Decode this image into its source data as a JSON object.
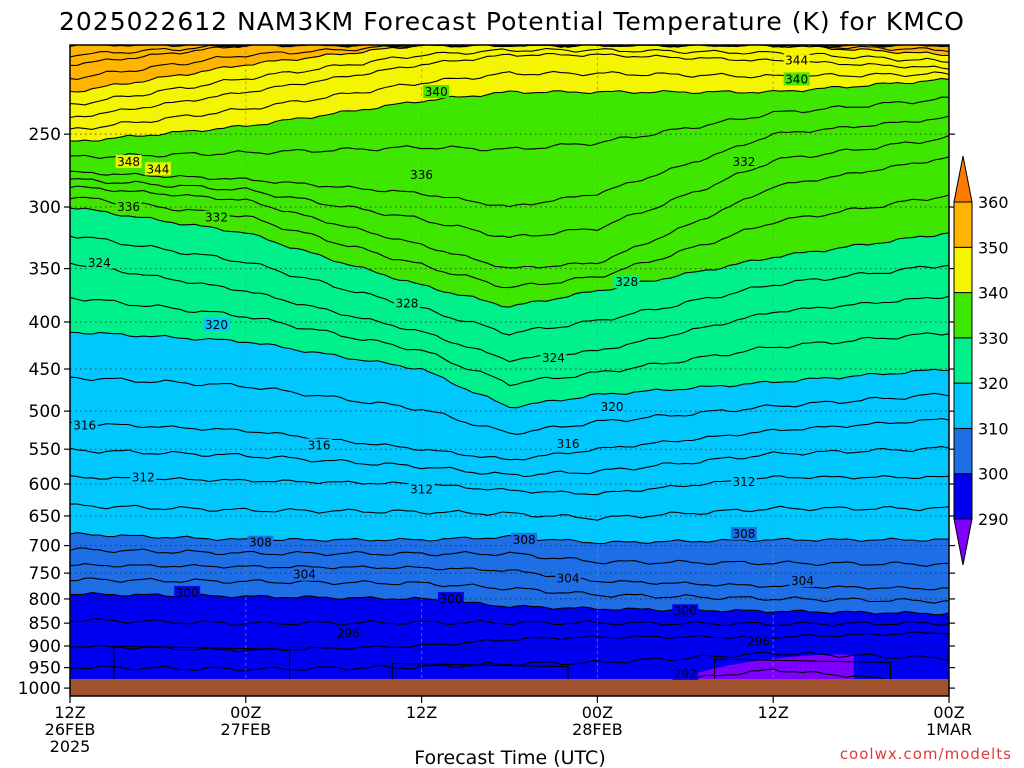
{
  "chart_data": {
    "type": "contour",
    "title": "2025022612 NAM3KM Forecast Potential Temperature (K) for KMCO",
    "xlabel": "Forecast Time (UTC)",
    "ylabel": "",
    "credit": "coolwx.com/modelts",
    "y_scale": "log-pressure (hPa, inverted)",
    "ylim": [
      1020,
      200
    ],
    "y_ticks": [
      250,
      300,
      350,
      400,
      450,
      500,
      550,
      600,
      650,
      700,
      750,
      800,
      850,
      900,
      950,
      1000
    ],
    "x_hours_range": [
      0,
      60
    ],
    "x_ticks": [
      {
        "hour": 0,
        "lines": [
          "12Z",
          "26FEB",
          "2025"
        ]
      },
      {
        "hour": 12,
        "lines": [
          "00Z",
          "27FEB"
        ]
      },
      {
        "hour": 24,
        "lines": [
          "12Z"
        ]
      },
      {
        "hour": 36,
        "lines": [
          "00Z",
          "28FEB"
        ]
      },
      {
        "hour": 48,
        "lines": [
          "12Z"
        ]
      },
      {
        "hour": 60,
        "lines": [
          "00Z",
          "1MAR"
        ]
      }
    ],
    "grid": true,
    "colorbar": {
      "placement": "right",
      "ticks": [
        290,
        300,
        310,
        320,
        330,
        340,
        350,
        360
      ],
      "bins": [
        {
          "min": 280,
          "max": 290,
          "color": "#7f00ff"
        },
        {
          "min": 290,
          "max": 300,
          "color": "#0000f0"
        },
        {
          "min": 300,
          "max": 310,
          "color": "#1e6ee6"
        },
        {
          "min": 310,
          "max": 320,
          "color": "#00c8ff"
        },
        {
          "min": 320,
          "max": 330,
          "color": "#00f08c"
        },
        {
          "min": 330,
          "max": 340,
          "color": "#3fe600"
        },
        {
          "min": 340,
          "max": 350,
          "color": "#f5f500"
        },
        {
          "min": 350,
          "max": 360,
          "color": "#ffb400"
        },
        {
          "min": 360,
          "max": 370,
          "color": "#ff7a00"
        }
      ]
    },
    "contour_interval_K": 2,
    "theta_levels_at_hours": {
      "hours": [
        0,
        12,
        24,
        30,
        36,
        48,
        60
      ],
      "levels": [
        {
          "theta": 292,
          "p": [
            1000,
            1000,
            1000,
            1000,
            1000,
            955,
            990
          ]
        },
        {
          "theta": 296,
          "p": [
            900,
            910,
            900,
            885,
            880,
            880,
            870
          ]
        },
        {
          "theta": 300,
          "p": [
            790,
            795,
            800,
            815,
            820,
            825,
            830
          ]
        },
        {
          "theta": 304,
          "p": [
            735,
            738,
            740,
            745,
            765,
            775,
            780
          ]
        },
        {
          "theta": 308,
          "p": [
            680,
            690,
            690,
            685,
            695,
            690,
            690
          ]
        },
        {
          "theta": 312,
          "p": [
            590,
            595,
            600,
            610,
            615,
            590,
            590
          ]
        },
        {
          "theta": 316,
          "p": [
            515,
            525,
            550,
            565,
            550,
            525,
            510
          ]
        },
        {
          "theta": 320,
          "p": [
            410,
            420,
            450,
            495,
            480,
            465,
            450
          ]
        },
        {
          "theta": 324,
          "p": [
            345,
            370,
            410,
            440,
            430,
            390,
            375
          ]
        },
        {
          "theta": 328,
          "p": [
            300,
            320,
            365,
            385,
            370,
            340,
            320
          ]
        },
        {
          "theta": 332,
          "p": [
            285,
            295,
            330,
            350,
            345,
            285,
            265
          ]
        },
        {
          "theta": 336,
          "p": [
            275,
            280,
            290,
            300,
            290,
            250,
            240
          ]
        },
        {
          "theta": 340,
          "p": [
            255,
            245,
            230,
            225,
            225,
            225,
            218
          ]
        },
        {
          "theta": 344,
          "p": [
            240,
            225,
            210,
            205,
            205,
            208,
            212
          ]
        },
        {
          "theta": 348,
          "p": [
            225,
            210,
            200,
            200,
            200,
            200,
            205
          ]
        },
        {
          "theta": 352,
          "p": [
            210,
            200,
            200,
            200,
            200,
            200,
            200
          ]
        },
        {
          "theta": 356,
          "p": [
            200,
            200,
            200,
            200,
            200,
            200,
            200
          ]
        }
      ]
    },
    "contour_labels": [
      {
        "text": "344",
        "hour": 49.6,
        "p": 208
      },
      {
        "text": "340",
        "hour": 49.6,
        "p": 218
      },
      {
        "text": "340",
        "hour": 25.0,
        "p": 225
      },
      {
        "text": "348",
        "hour": 4.0,
        "p": 268
      },
      {
        "text": "344",
        "hour": 6.0,
        "p": 273
      },
      {
        "text": "336",
        "hour": 24.0,
        "p": 277
      },
      {
        "text": "332",
        "hour": 46.0,
        "p": 268
      },
      {
        "text": "336",
        "hour": 4.0,
        "p": 300
      },
      {
        "text": "332",
        "hour": 10.0,
        "p": 308
      },
      {
        "text": "324",
        "hour": 2.0,
        "p": 345
      },
      {
        "text": "328",
        "hour": 38.0,
        "p": 362
      },
      {
        "text": "328",
        "hour": 23.0,
        "p": 382
      },
      {
        "text": "320",
        "hour": 10.0,
        "p": 403
      },
      {
        "text": "324",
        "hour": 33.0,
        "p": 438
      },
      {
        "text": "320",
        "hour": 37.0,
        "p": 495
      },
      {
        "text": "316",
        "hour": 1.0,
        "p": 518
      },
      {
        "text": "316",
        "hour": 17.0,
        "p": 545
      },
      {
        "text": "316",
        "hour": 34.0,
        "p": 543
      },
      {
        "text": "312",
        "hour": 5.0,
        "p": 590
      },
      {
        "text": "312",
        "hour": 24.0,
        "p": 608
      },
      {
        "text": "312",
        "hour": 46.0,
        "p": 597
      },
      {
        "text": "308",
        "hour": 13.0,
        "p": 695
      },
      {
        "text": "308",
        "hour": 31.0,
        "p": 690
      },
      {
        "text": "308",
        "hour": 46.0,
        "p": 680
      },
      {
        "text": "304",
        "hour": 16.0,
        "p": 753
      },
      {
        "text": "304",
        "hour": 34.0,
        "p": 760
      },
      {
        "text": "304",
        "hour": 50.0,
        "p": 765
      },
      {
        "text": "300",
        "hour": 8.0,
        "p": 788
      },
      {
        "text": "300",
        "hour": 26.0,
        "p": 800
      },
      {
        "text": "300",
        "hour": 42.0,
        "p": 825
      },
      {
        "text": "296",
        "hour": 19.0,
        "p": 872
      },
      {
        "text": "296",
        "hour": 47.0,
        "p": 890
      },
      {
        "text": "292",
        "hour": 42.0,
        "p": 965
      }
    ]
  }
}
